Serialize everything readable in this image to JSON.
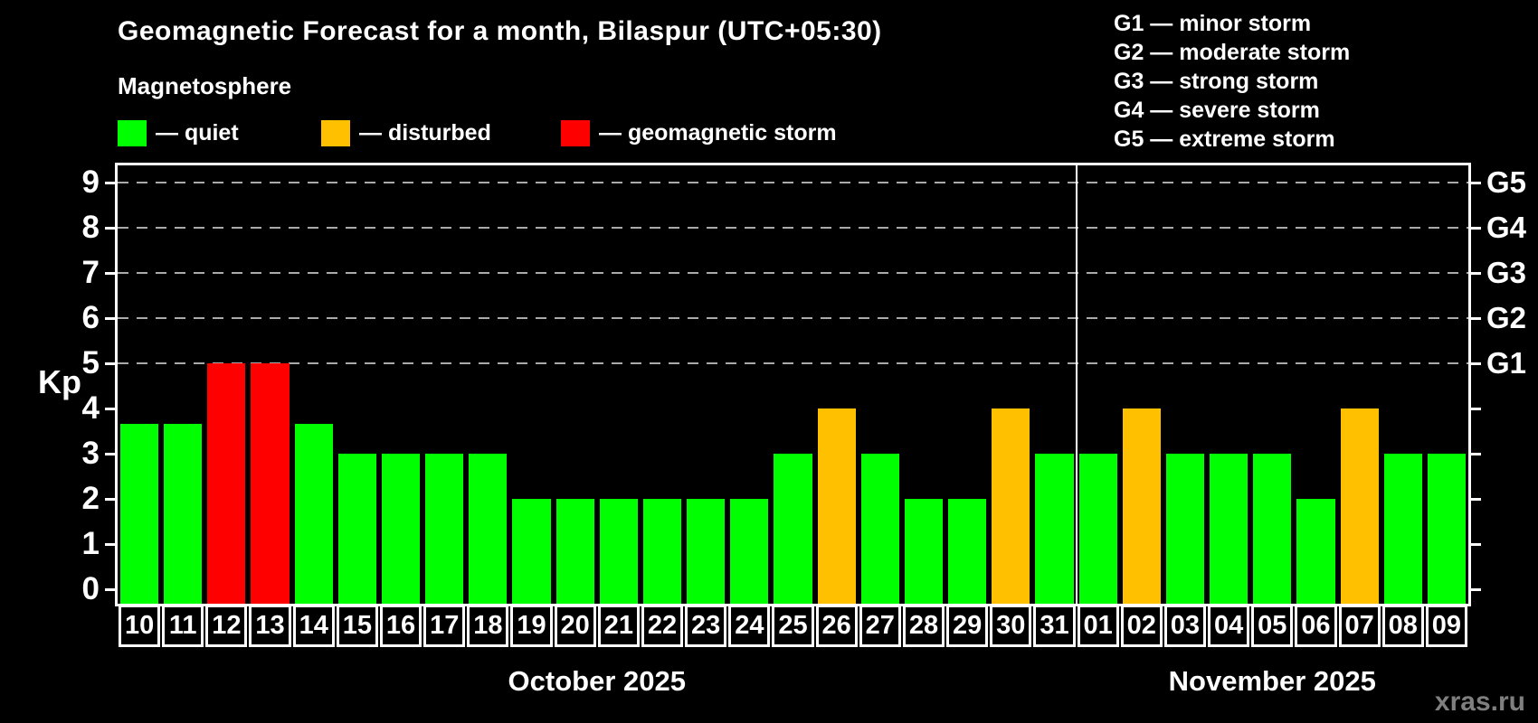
{
  "title": "Geomagnetic Forecast for a month, Bilaspur (UTC+05:30)",
  "subtitle": "Magnetosphere",
  "watermark": "xras.ru",
  "legend": {
    "items": [
      {
        "key": "quiet",
        "label": "— quiet",
        "color": "#00ff00"
      },
      {
        "key": "disturbed",
        "label": "— disturbed",
        "color": "#ffc000"
      },
      {
        "key": "storm",
        "label": "— geomagnetic storm",
        "color": "#ff0000"
      }
    ]
  },
  "g_legend": [
    "G1 — minor storm",
    "G2 — moderate storm",
    "G3 — strong storm",
    "G4 — severe storm",
    "G5 — extreme storm"
  ],
  "chart_data": {
    "type": "bar",
    "ylabel": "Kp",
    "ylim": [
      -0.32,
      9.38
    ],
    "yticks": [
      0,
      1,
      2,
      3,
      4,
      5,
      6,
      7,
      8,
      9
    ],
    "gridlines_at": [
      5,
      6,
      7,
      8,
      9
    ],
    "grid_style": "dashed",
    "right_axis": [
      {
        "kp": 5,
        "label": "G1"
      },
      {
        "kp": 6,
        "label": "G2"
      },
      {
        "kp": 7,
        "label": "G3"
      },
      {
        "kp": 8,
        "label": "G4"
      },
      {
        "kp": 9,
        "label": "G5"
      }
    ],
    "status_colors": {
      "quiet": "#00ff00",
      "disturbed": "#ffc000",
      "storm": "#ff0000"
    },
    "months": [
      {
        "label": "October 2025",
        "days": [
          {
            "day": "10",
            "kp": 3.67,
            "status": "quiet"
          },
          {
            "day": "11",
            "kp": 3.67,
            "status": "quiet"
          },
          {
            "day": "12",
            "kp": 5,
            "status": "storm"
          },
          {
            "day": "13",
            "kp": 5,
            "status": "storm"
          },
          {
            "day": "14",
            "kp": 3.67,
            "status": "quiet"
          },
          {
            "day": "15",
            "kp": 3,
            "status": "quiet"
          },
          {
            "day": "16",
            "kp": 3,
            "status": "quiet"
          },
          {
            "day": "17",
            "kp": 3,
            "status": "quiet"
          },
          {
            "day": "18",
            "kp": 3,
            "status": "quiet"
          },
          {
            "day": "19",
            "kp": 2,
            "status": "quiet"
          },
          {
            "day": "20",
            "kp": 2,
            "status": "quiet"
          },
          {
            "day": "21",
            "kp": 2,
            "status": "quiet"
          },
          {
            "day": "22",
            "kp": 2,
            "status": "quiet"
          },
          {
            "day": "23",
            "kp": 2,
            "status": "quiet"
          },
          {
            "day": "24",
            "kp": 2,
            "status": "quiet"
          },
          {
            "day": "25",
            "kp": 3,
            "status": "quiet"
          },
          {
            "day": "26",
            "kp": 4,
            "status": "disturbed"
          },
          {
            "day": "27",
            "kp": 3,
            "status": "quiet"
          },
          {
            "day": "28",
            "kp": 2,
            "status": "quiet"
          },
          {
            "day": "29",
            "kp": 2,
            "status": "quiet"
          },
          {
            "day": "30",
            "kp": 4,
            "status": "disturbed"
          },
          {
            "day": "31",
            "kp": 3,
            "status": "quiet"
          }
        ]
      },
      {
        "label": "November 2025",
        "days": [
          {
            "day": "01",
            "kp": 3,
            "status": "quiet"
          },
          {
            "day": "02",
            "kp": 4,
            "status": "disturbed"
          },
          {
            "day": "03",
            "kp": 3,
            "status": "quiet"
          },
          {
            "day": "04",
            "kp": 3,
            "status": "quiet"
          },
          {
            "day": "05",
            "kp": 3,
            "status": "quiet"
          },
          {
            "day": "06",
            "kp": 2,
            "status": "quiet"
          },
          {
            "day": "07",
            "kp": 4,
            "status": "disturbed"
          },
          {
            "day": "08",
            "kp": 3,
            "status": "quiet"
          },
          {
            "day": "09",
            "kp": 3,
            "status": "quiet"
          }
        ]
      }
    ]
  }
}
